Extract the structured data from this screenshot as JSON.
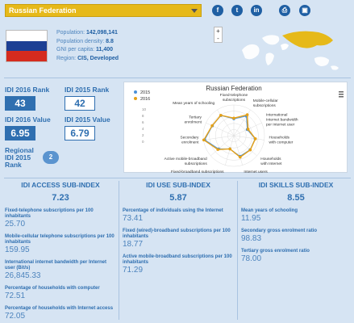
{
  "country_select": {
    "value": "Russian Federation"
  },
  "social": [
    {
      "icon": "facebook-icon",
      "glyph": "f"
    },
    {
      "icon": "twitter-icon",
      "glyph": "t"
    },
    {
      "icon": "linkedin-icon",
      "glyph": "in"
    },
    {
      "icon": "print-icon",
      "glyph": "⎙"
    },
    {
      "icon": "save-icon",
      "glyph": "▣"
    }
  ],
  "country_info": {
    "population_label": "Population:",
    "population_value": "142,098,141",
    "density_label": "Population density:",
    "density_value": "8.8",
    "gni_label": "GNI per capita:",
    "gni_value": "11,400",
    "region_label": "Region:",
    "region_value": "CIS, Developed"
  },
  "zoom": {
    "plus": "+",
    "minus": "-"
  },
  "ranks": {
    "rank2016_label": "IDI 2016 Rank",
    "rank2016_value": "43",
    "rank2015_label": "IDI 2015 Rank",
    "rank2015_value": "42",
    "value2016_label": "IDI 2016 Value",
    "value2016_value": "6.95",
    "value2015_label": "IDI 2015 Value",
    "value2015_value": "6.79",
    "regional_label_1": "Regional",
    "regional_label_2": "IDI 2015",
    "regional_label_3": "Rank",
    "regional_value": "2"
  },
  "colors": {
    "primary": "#2f6fb0",
    "series2015": "#4a90d9",
    "series2016": "#e6a117",
    "flag": [
      "#ffffff",
      "#1c3f94",
      "#d52b1e"
    ]
  },
  "chart_data": {
    "type": "radar",
    "title": "Russian Federation",
    "axes": [
      "Fixed-telephone subscriptions",
      "Mobile-cellular subscriptions",
      "International Internet bandwidth per Internet user",
      "Households with computer",
      "Households with Internet",
      "Internet users",
      "Fixed-broadband subscriptions",
      "Active mobile-broadband subscriptions",
      "Secondary enrolment",
      "Tertiary enrolment",
      "Mean years of schooling"
    ],
    "axes_lines": [
      [
        "Fixed-telephone",
        "subscriptions"
      ],
      [
        "Mobile-cellular",
        "subscriptions"
      ],
      [
        "International",
        "Internet bandwidth",
        "per Internet user"
      ],
      [
        "Households",
        "with computer"
      ],
      [
        "Households",
        "with Internet"
      ],
      [
        "Internet users"
      ],
      [
        "Fixed-broadband subscriptions"
      ],
      [
        "Active mobile-broadband",
        "subscriptions"
      ],
      [
        "Secondary",
        "enrolment"
      ],
      [
        "Tertiary",
        "enrolment"
      ],
      [
        "Mean years of schooling"
      ]
    ],
    "range": [
      0,
      10
    ],
    "ticks": [
      "0",
      "2",
      "4",
      "6",
      "8",
      "10"
    ],
    "series": [
      {
        "name": "2015",
        "values": [
          5.5,
          7.6,
          4.8,
          7.0,
          7.0,
          7.0,
          4.5,
          6.6,
          9.6,
          7.7,
          7.8
        ]
      },
      {
        "name": "2016",
        "values": [
          5.7,
          8.1,
          5.1,
          7.1,
          7.1,
          7.3,
          4.5,
          6.9,
          9.9,
          7.8,
          7.9
        ]
      }
    ],
    "menu_icon": "menu-icon"
  },
  "subindex": [
    {
      "title": "IDI ACCESS SUB-INDEX",
      "value": "7.23",
      "items": [
        {
          "label": "Fixed-telephone subscriptions per 100 inhabitants",
          "value": "25.70"
        },
        {
          "label": "Mobile-cellular telephone subscriptions per 100 inhabitants",
          "value": "159.95"
        },
        {
          "label": "International internet bandwidth per Internet user (Bit/s)",
          "value": "26,845.33"
        },
        {
          "label": "Percentage of households with computer",
          "value": "72.51"
        },
        {
          "label": "Percentage of households with Internet access",
          "value": "72.05"
        }
      ]
    },
    {
      "title": "IDI USE SUB-INDEX",
      "value": "5.87",
      "items": [
        {
          "label": "Percentage of individuals using the Internet",
          "value": "73.41"
        },
        {
          "label": "Fixed (wired)-broadband subscriptions per 100 inhabitants",
          "value": "18.77"
        },
        {
          "label": "Active mobile-broadband subscriptions per 100 inhabitants",
          "value": "71.29"
        }
      ]
    },
    {
      "title": "IDI SKILLS SUB-INDEX",
      "value": "8.55",
      "items": [
        {
          "label": "Mean years of schooling",
          "value": "11.95"
        },
        {
          "label": "Secondary gross enrolment ratio",
          "value": "98.83"
        },
        {
          "label": "Tertiary gross enrolment ratio",
          "value": "78.00"
        }
      ]
    }
  ]
}
